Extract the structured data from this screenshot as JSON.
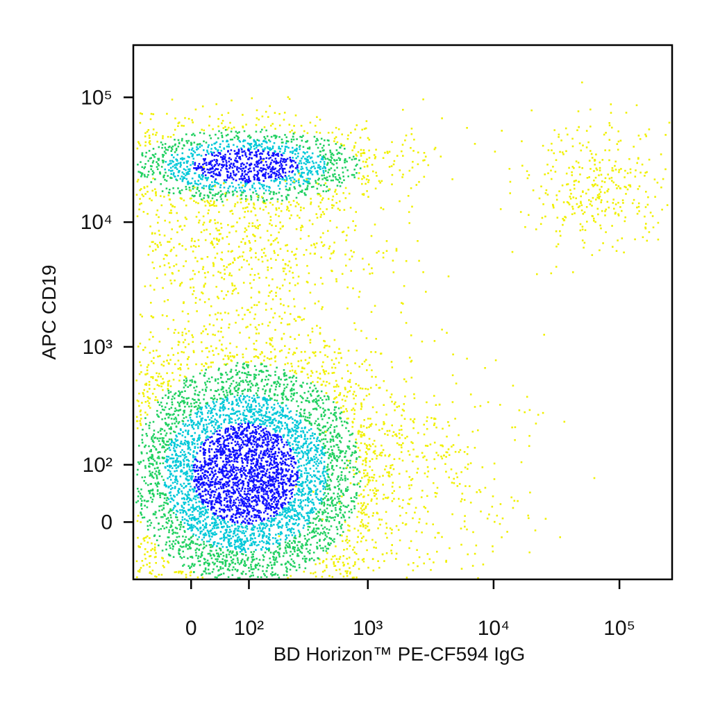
{
  "chart_data": {
    "type": "density-dot",
    "x_label": "BD Horizon™ PE-CF594 IgG",
    "y_label": "APC CD19",
    "xscale": "biexponential",
    "yscale": "biexponential",
    "xlim": [
      -100,
      262144
    ],
    "ylim": [
      -100,
      262144
    ],
    "xticks": [
      0,
      {
        "value": 100,
        "label": "10²"
      },
      {
        "value": 1000,
        "label": "10³"
      },
      {
        "value": 10000,
        "label": "10⁴"
      },
      {
        "value": 100000,
        "label": "10⁵"
      }
    ],
    "yticks": [
      0,
      {
        "value": 100,
        "label": "10²"
      },
      {
        "value": 1000,
        "label": "10³"
      },
      {
        "value": 10000,
        "label": "10⁴"
      },
      {
        "value": 100000,
        "label": "10⁵"
      }
    ],
    "grid": false,
    "colors": [
      "#1010ff",
      "#00c8d8",
      "#20d060",
      "#f0f000"
    ],
    "populations": [
      {
        "x": [
          -100,
          800
        ],
        "y": [
          -100,
          700
        ],
        "events": 7000
      },
      {
        "x": [
          -100,
          800
        ],
        "y": [
          15000,
          55000
        ],
        "events": 1800
      },
      {
        "x": [
          -100,
          900
        ],
        "y": [
          2500,
          15000
        ],
        "events": 500
      },
      {
        "x": [
          20000,
          200000
        ],
        "y": [
          8000,
          50000
        ],
        "events": 350
      },
      {
        "x": [
          800,
          20000
        ],
        "y": [
          -100,
          500
        ],
        "events": 250
      }
    ]
  }
}
